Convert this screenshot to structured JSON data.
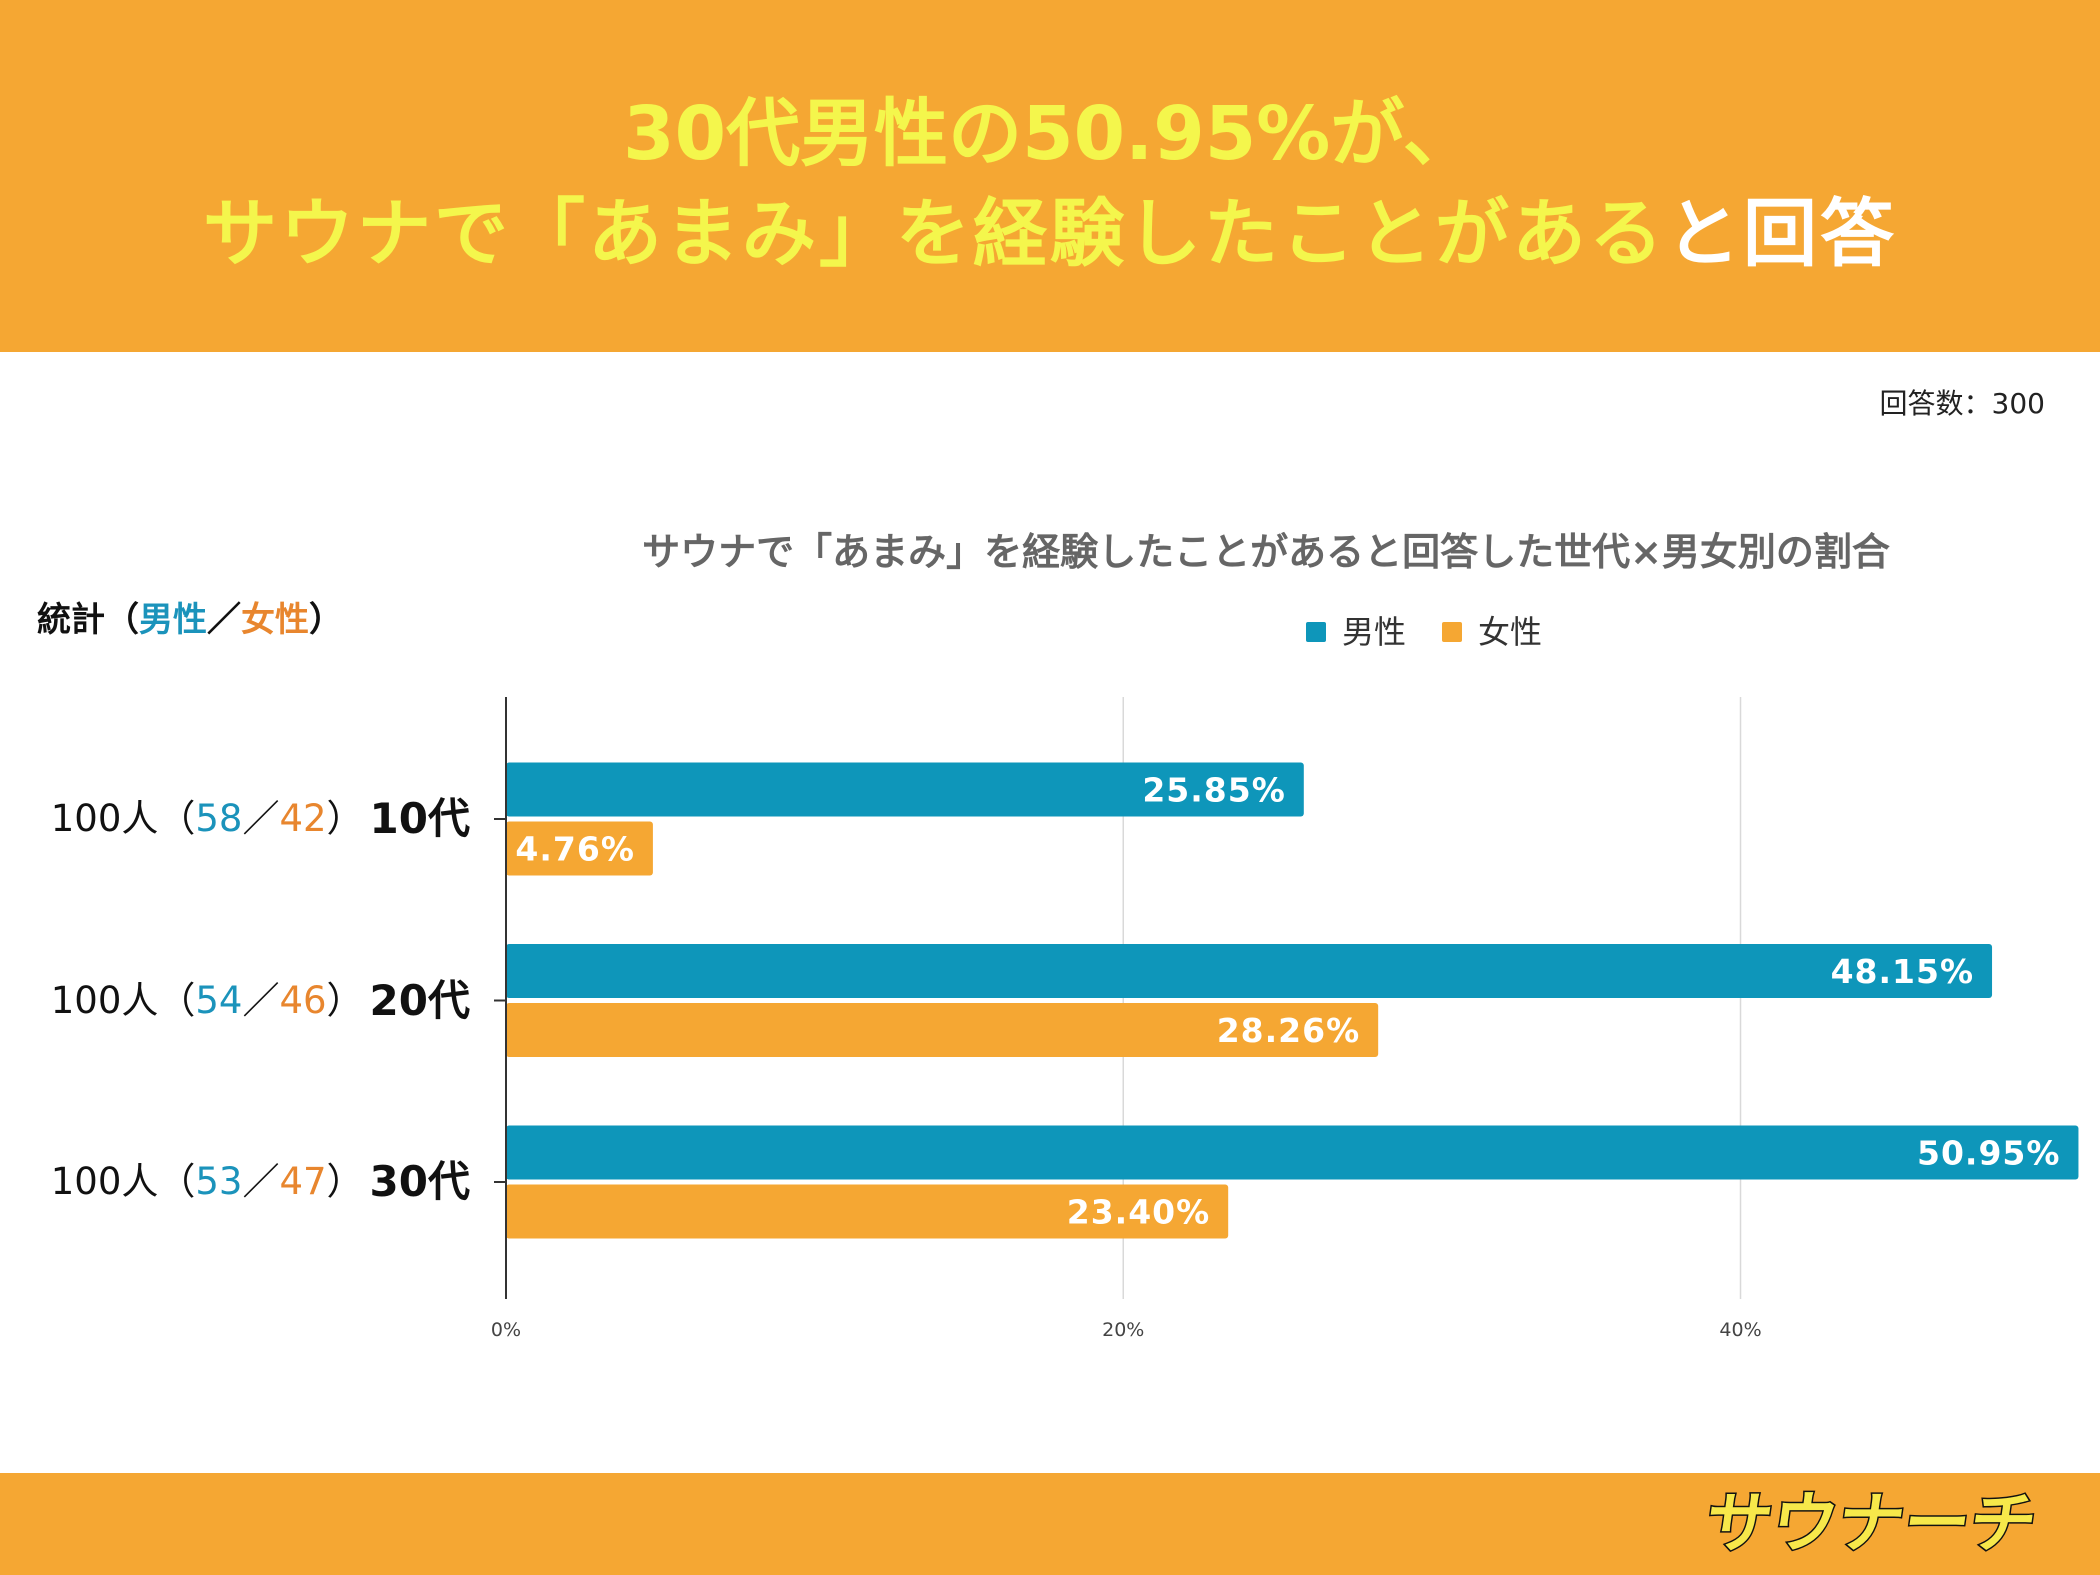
{
  "header": {
    "title_line1": "30代男性の50.95%が、",
    "title_line2_highlight": "サウナで「あまみ」を経験したことがある",
    "title_line2_tail": "と回答"
  },
  "response_count": "回答数：300",
  "stats_label": {
    "prefix": "統計",
    "open": "（",
    "male": "男性",
    "slash": "／",
    "female": "女性",
    "close": "）"
  },
  "rows": [
    {
      "total": "100人",
      "open": "（",
      "male": "58",
      "slash": "／",
      "female": "42",
      "close": "）"
    },
    {
      "total": "100人",
      "open": "（",
      "male": "54",
      "slash": "／",
      "female": "46",
      "close": "）"
    },
    {
      "total": "100人",
      "open": "（",
      "male": "53",
      "slash": "／",
      "female": "47",
      "close": "）"
    }
  ],
  "colors": {
    "brand_orange": "#F5A733",
    "title_yellow": "#F4F64C",
    "male_teal": "#0E96BA",
    "female_orange": "#F5A733",
    "male_text": "#1B93BB",
    "female_text": "#E8862E"
  },
  "chart_data": {
    "type": "bar",
    "orientation": "horizontal",
    "title": "サウナで「あまみ」を経験したことがあると回答した世代×男女別の割合",
    "categories": [
      "10代",
      "20代",
      "30代"
    ],
    "series": [
      {
        "name": "男性",
        "color": "#0E96BA",
        "values": [
          25.85,
          48.15,
          50.95
        ],
        "labels": [
          "25.85%",
          "48.15%",
          "50.95%"
        ]
      },
      {
        "name": "女性",
        "color": "#F5A733",
        "values": [
          4.76,
          28.26,
          23.4
        ],
        "labels": [
          "4.76%",
          "28.26%",
          "23.40%"
        ]
      }
    ],
    "xlim": [
      0,
      51
    ],
    "xticks": {
      "values": [
        0,
        20,
        40
      ],
      "labels": [
        "0%",
        "20%",
        "40%"
      ]
    },
    "xlabel": "",
    "ylabel": "",
    "grid": true,
    "legend": "top-center"
  },
  "logo": {
    "text": "サウナーチ"
  }
}
